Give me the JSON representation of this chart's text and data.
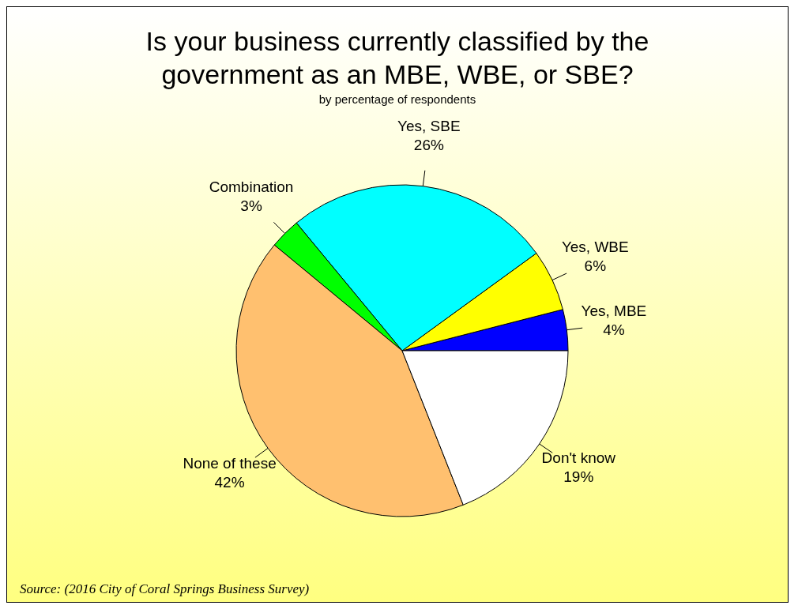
{
  "chart_data": {
    "type": "pie",
    "title": "Is your business currently classified by the government as an MBE, WBE, or SBE?",
    "subtitle": "by percentage of respondents",
    "categories": [
      "Yes, MBE",
      "Yes, WBE",
      "Yes, SBE",
      "Combination",
      "None of these",
      "Don't know"
    ],
    "values": [
      4,
      6,
      26,
      3,
      42,
      19
    ],
    "colors": [
      "#0000ff",
      "#ffff00",
      "#00ffff",
      "#00ff00",
      "#ffc06f",
      "#ffffff"
    ],
    "value_labels": [
      "4%",
      "6%",
      "26%",
      "3%",
      "42%",
      "19%"
    ],
    "annotations": [
      "Source:  (2016 City of Coral Springs Business Survey)"
    ]
  }
}
